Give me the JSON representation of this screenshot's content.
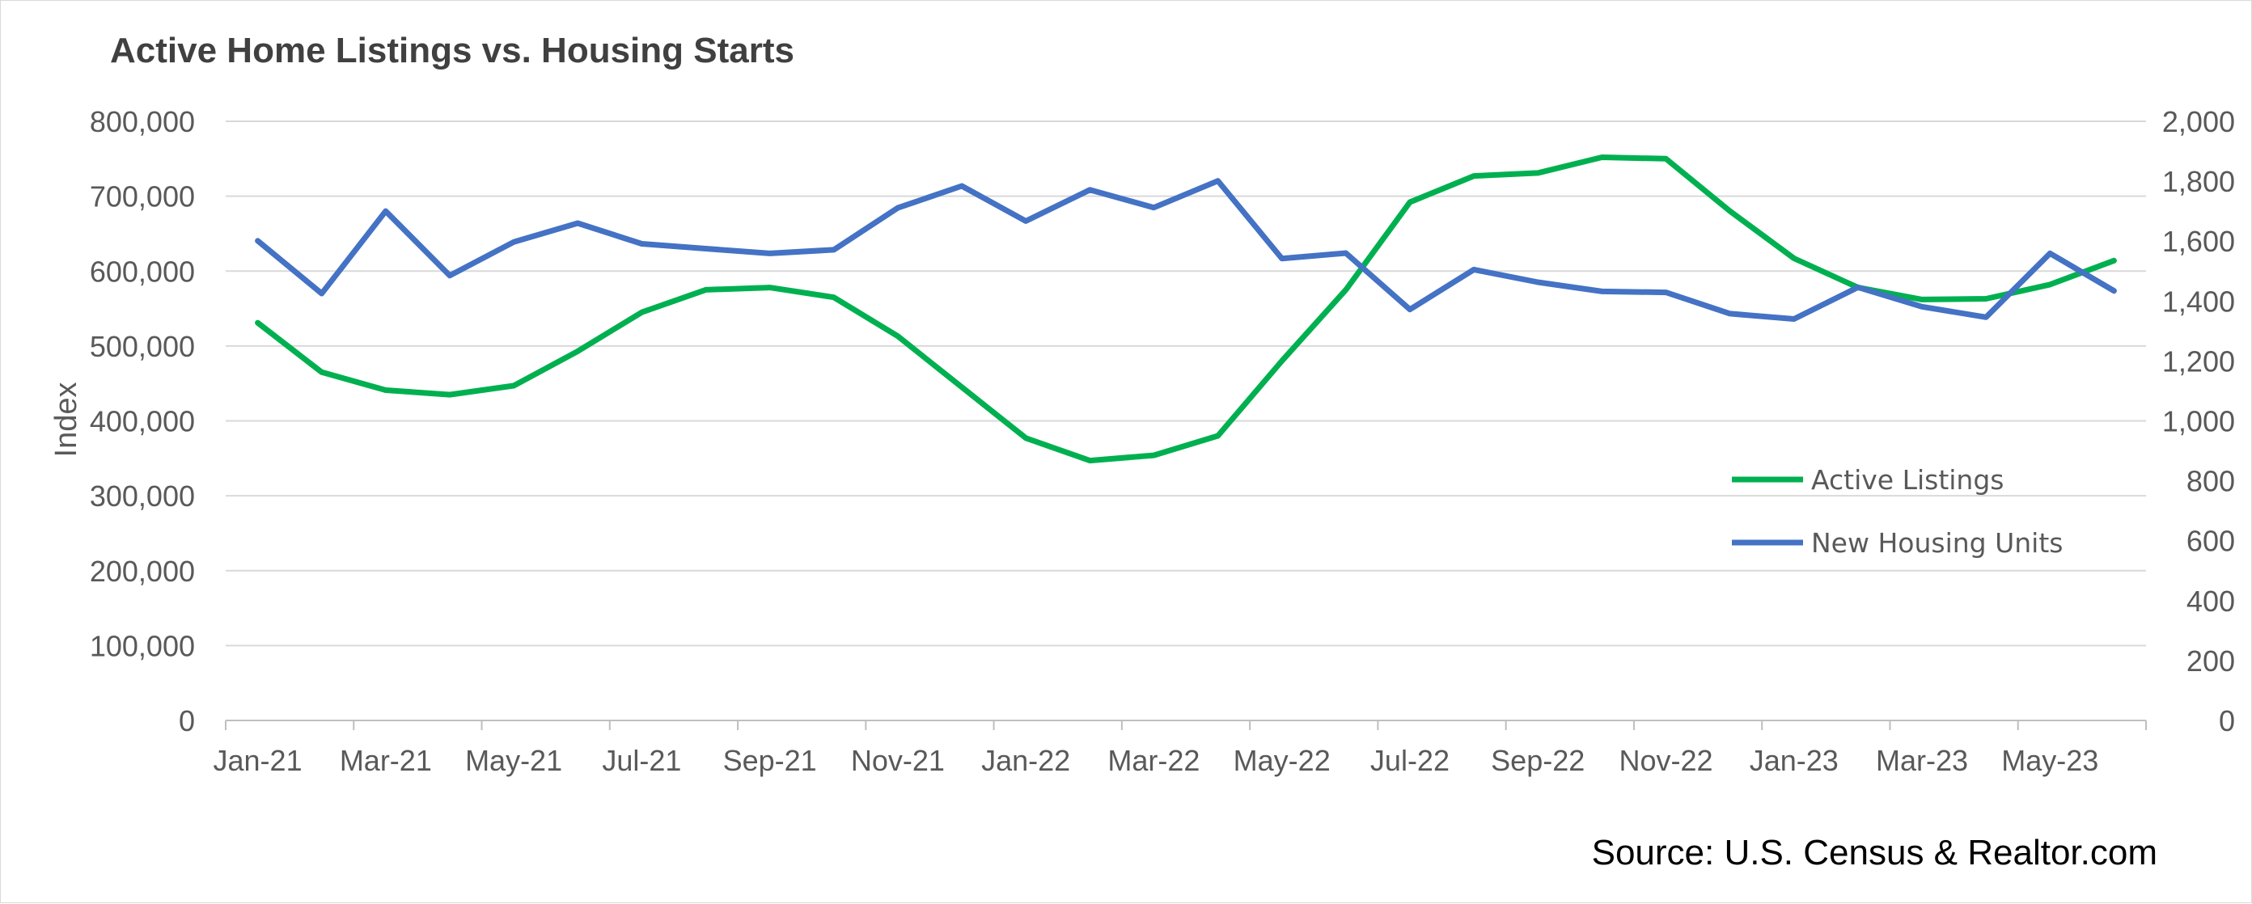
{
  "chart_data": {
    "type": "line",
    "title": "Active Home Listings vs. Housing Starts",
    "ylabel": "Index",
    "y2label": "",
    "source": "Source: U.S. Census & Realtor.com",
    "ylim": [
      0,
      800000
    ],
    "y_ticks": [
      "0",
      "100,000",
      "200,000",
      "300,000",
      "400,000",
      "500,000",
      "600,000",
      "700,000",
      "800,000"
    ],
    "y2lim": [
      0,
      2000
    ],
    "y2_ticks": [
      "0",
      "200",
      "400",
      "600",
      "800",
      "1,000",
      "1,200",
      "1,400",
      "1,600",
      "1,800",
      "2,000"
    ],
    "grid": "horizontal",
    "legend_position": "right",
    "x": [
      "Jan-21",
      "Feb-21",
      "Mar-21",
      "Apr-21",
      "May-21",
      "Jun-21",
      "Jul-21",
      "Aug-21",
      "Sep-21",
      "Oct-21",
      "Nov-21",
      "Dec-21",
      "Jan-22",
      "Feb-22",
      "Mar-22",
      "Apr-22",
      "May-22",
      "Jun-22",
      "Jul-22",
      "Aug-22",
      "Sep-22",
      "Oct-22",
      "Nov-22",
      "Dec-22",
      "Jan-23",
      "Feb-23",
      "Mar-23",
      "Apr-23",
      "May-23",
      "Jun-23"
    ],
    "x_tick_labels": [
      "Jan-21",
      "Mar-21",
      "May-21",
      "Jul-21",
      "Sep-21",
      "Nov-21",
      "Jan-22",
      "Mar-22",
      "May-22",
      "Jul-22",
      "Sep-22",
      "Nov-22",
      "Jan-23",
      "Mar-23",
      "May-23"
    ],
    "series": [
      {
        "name": "Active Listings",
        "axis": "left",
        "color": "#00b050",
        "values": [
          531000,
          465000,
          441000,
          435000,
          447000,
          493000,
          545000,
          575000,
          578000,
          565000,
          513000,
          445000,
          377000,
          347000,
          354000,
          380000,
          480000,
          575000,
          692000,
          727000,
          731000,
          752000,
          750000,
          680000,
          617000,
          578000,
          562000,
          563000,
          582000,
          614000
        ]
      },
      {
        "name": "New Housing Units",
        "axis": "right",
        "color": "#4472c4",
        "values": [
          1601,
          1425,
          1700,
          1485,
          1597,
          1660,
          1591,
          1575,
          1559,
          1571,
          1711,
          1784,
          1667,
          1771,
          1712,
          1801,
          1542,
          1560,
          1372,
          1505,
          1463,
          1432,
          1429,
          1358,
          1340,
          1446,
          1381,
          1346,
          1559,
          1434
        ]
      }
    ]
  }
}
